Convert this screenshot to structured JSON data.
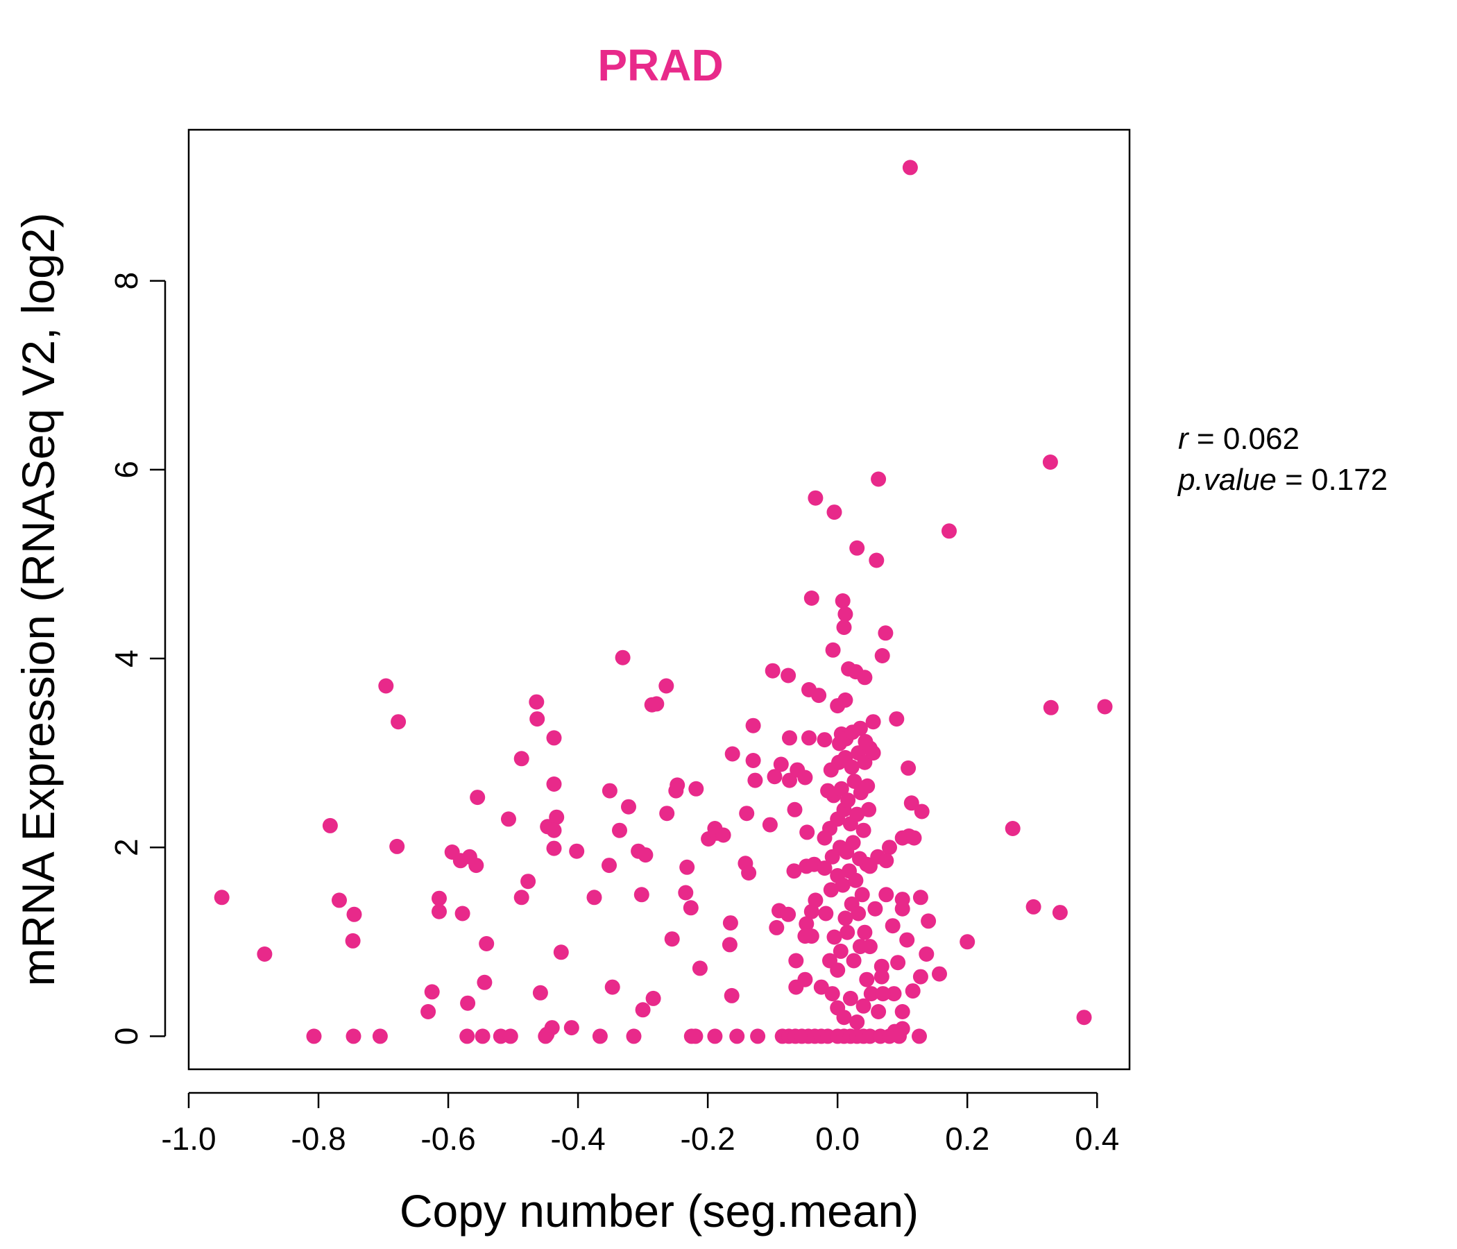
{
  "chart_data": {
    "type": "scatter",
    "title": "PRAD",
    "xlabel": "Copy number (seg.mean)",
    "ylabel": "mRNA Expression (RNASeq V2, log2)",
    "xlim": [
      -1.0,
      0.45
    ],
    "ylim": [
      -0.35,
      9.6
    ],
    "x_ticks": [
      "-1.0",
      "-0.8",
      "-0.6",
      "-0.4",
      "-0.2",
      "0.0",
      "0.2",
      "0.4"
    ],
    "y_ticks": [
      "0",
      "2",
      "4",
      "6",
      "8"
    ],
    "grid": false,
    "point_color": "#E8298A",
    "title_color": "#E8298A",
    "stats": {
      "r_label": "r",
      "r_value": "0.062",
      "p_label": "p.value",
      "p_value": "0.172"
    },
    "points": [
      [
        0.112,
        9.2
      ],
      [
        0.328,
        6.08
      ],
      [
        -0.034,
        5.7
      ],
      [
        -0.005,
        5.55
      ],
      [
        0.063,
        5.9
      ],
      [
        0.172,
        5.35
      ],
      [
        0.03,
        5.17
      ],
      [
        0.06,
        5.04
      ],
      [
        -0.04,
        4.64
      ],
      [
        0.008,
        4.61
      ],
      [
        0.012,
        4.47
      ],
      [
        0.01,
        4.33
      ],
      [
        0.074,
        4.27
      ],
      [
        -0.007,
        4.09
      ],
      [
        0.069,
        4.03
      ],
      [
        0.017,
        3.89
      ],
      [
        0.028,
        3.86
      ],
      [
        0.042,
        3.8
      ],
      [
        -0.1,
        3.87
      ],
      [
        -0.076,
        3.82
      ],
      [
        -0.044,
        3.67
      ],
      [
        -0.029,
        3.61
      ],
      [
        0.0,
        3.5
      ],
      [
        0.012,
        3.56
      ],
      [
        0.091,
        3.36
      ],
      [
        -0.331,
        4.01
      ],
      [
        -0.264,
        3.71
      ],
      [
        -0.286,
        3.51
      ],
      [
        -0.279,
        3.52
      ],
      [
        -0.696,
        3.71
      ],
      [
        -0.677,
        3.33
      ],
      [
        -0.464,
        3.54
      ],
      [
        -0.463,
        3.36
      ],
      [
        -0.437,
        3.16
      ],
      [
        -0.13,
        3.29
      ],
      [
        -0.074,
        3.16
      ],
      [
        -0.044,
        3.16
      ],
      [
        -0.02,
        3.14
      ],
      [
        0.329,
        3.48
      ],
      [
        0.412,
        3.49
      ],
      [
        0.055,
        3.33
      ],
      [
        0.035,
        3.26
      ],
      [
        0.006,
        3.2
      ],
      [
        -0.162,
        2.99
      ],
      [
        -0.13,
        2.92
      ],
      [
        -0.087,
        2.88
      ],
      [
        -0.097,
        2.75
      ],
      [
        -0.074,
        2.71
      ],
      [
        -0.127,
        2.71
      ],
      [
        -0.05,
        2.74
      ],
      [
        -0.062,
        2.82
      ],
      [
        -0.487,
        2.94
      ],
      [
        -0.437,
        2.67
      ],
      [
        -0.351,
        2.6
      ],
      [
        -0.247,
        2.66
      ],
      [
        -0.249,
        2.6
      ],
      [
        -0.218,
        2.62
      ],
      [
        -0.555,
        2.53
      ],
      [
        0.109,
        2.84
      ],
      [
        0.114,
        2.47
      ],
      [
        0.13,
        2.38
      ],
      [
        0.27,
        2.2
      ],
      [
        0.11,
        2.12
      ],
      [
        0.1,
        2.1
      ],
      [
        0.118,
        2.1
      ],
      [
        0.08,
        2.0
      ],
      [
        0.062,
        1.9
      ],
      [
        0.075,
        1.86
      ],
      [
        -0.322,
        2.43
      ],
      [
        -0.263,
        2.36
      ],
      [
        -0.066,
        2.4
      ],
      [
        -0.14,
        2.36
      ],
      [
        -0.104,
        2.24
      ],
      [
        -0.507,
        2.3
      ],
      [
        -0.447,
        2.22
      ],
      [
        -0.433,
        2.32
      ],
      [
        -0.437,
        2.18
      ],
      [
        -0.336,
        2.18
      ],
      [
        -0.189,
        2.2
      ],
      [
        -0.199,
        2.09
      ],
      [
        -0.186,
        2.15
      ],
      [
        -0.176,
        2.13
      ],
      [
        -0.047,
        2.16
      ],
      [
        -0.782,
        2.23
      ],
      [
        -0.679,
        2.01
      ],
      [
        -0.437,
        1.99
      ],
      [
        -0.402,
        1.96
      ],
      [
        -0.307,
        1.96
      ],
      [
        -0.296,
        1.92
      ],
      [
        -0.352,
        1.81
      ],
      [
        -0.232,
        1.79
      ],
      [
        -0.142,
        1.83
      ],
      [
        -0.137,
        1.73
      ],
      [
        -0.594,
        1.95
      ],
      [
        -0.567,
        1.9
      ],
      [
        -0.557,
        1.81
      ],
      [
        -0.581,
        1.86
      ],
      [
        -0.477,
        1.64
      ],
      [
        -0.067,
        1.75
      ],
      [
        -0.048,
        1.8
      ],
      [
        -0.036,
        1.82
      ],
      [
        -0.02,
        1.78
      ],
      [
        0.045,
        1.82
      ],
      [
        -0.949,
        1.47
      ],
      [
        -0.768,
        1.44
      ],
      [
        -0.745,
        1.29
      ],
      [
        -0.614,
        1.46
      ],
      [
        -0.614,
        1.32
      ],
      [
        -0.578,
        1.3
      ],
      [
        -0.487,
        1.47
      ],
      [
        -0.375,
        1.47
      ],
      [
        -0.302,
        1.5
      ],
      [
        -0.234,
        1.52
      ],
      [
        -0.226,
        1.36
      ],
      [
        -0.09,
        1.33
      ],
      [
        -0.076,
        1.29
      ],
      [
        -0.034,
        1.44
      ],
      [
        -0.04,
        1.32
      ],
      [
        -0.048,
        1.19
      ],
      [
        -0.094,
        1.15
      ],
      [
        0.075,
        1.5
      ],
      [
        0.1,
        1.45
      ],
      [
        0.128,
        1.47
      ],
      [
        0.1,
        1.35
      ],
      [
        0.14,
        1.22
      ],
      [
        0.085,
        1.17
      ],
      [
        0.107,
        1.02
      ],
      [
        0.302,
        1.37
      ],
      [
        0.343,
        1.31
      ],
      [
        0.2,
        1.0
      ],
      [
        0.137,
        0.87
      ],
      [
        0.157,
        0.66
      ],
      [
        0.128,
        0.63
      ],
      [
        -0.747,
        1.01
      ],
      [
        -0.883,
        0.87
      ],
      [
        -0.541,
        0.98
      ],
      [
        -0.255,
        1.03
      ],
      [
        -0.426,
        0.89
      ],
      [
        -0.165,
        1.2
      ],
      [
        -0.166,
        0.97
      ],
      [
        -0.212,
        0.72
      ],
      [
        -0.05,
        1.06
      ],
      [
        -0.04,
        1.06
      ],
      [
        -0.064,
        0.8
      ],
      [
        0.093,
        0.78
      ],
      [
        0.068,
        0.74
      ],
      [
        0.068,
        0.63
      ],
      [
        0.087,
        0.45
      ],
      [
        0.116,
        0.48
      ],
      [
        -0.544,
        0.57
      ],
      [
        -0.458,
        0.46
      ],
      [
        -0.347,
        0.52
      ],
      [
        -0.625,
        0.47
      ],
      [
        -0.57,
        0.35
      ],
      [
        -0.631,
        0.26
      ],
      [
        -0.284,
        0.4
      ],
      [
        -0.3,
        0.28
      ],
      [
        -0.163,
        0.43
      ],
      [
        -0.064,
        0.52
      ],
      [
        -0.05,
        0.6
      ],
      [
        -0.025,
        0.52
      ],
      [
        0.052,
        0.45
      ],
      [
        0.07,
        0.45
      ],
      [
        0.063,
        0.26
      ],
      [
        0.1,
        0.26
      ],
      [
        0.38,
        0.2
      ],
      [
        0.1,
        0.08
      ],
      [
        0.088,
        0.05
      ],
      [
        -0.44,
        0.09
      ],
      [
        -0.41,
        0.09
      ],
      [
        -0.448,
        0.02
      ],
      [
        -0.807,
        0.0
      ],
      [
        -0.746,
        0.0
      ],
      [
        -0.705,
        0.0
      ],
      [
        -0.571,
        0.0
      ],
      [
        -0.547,
        0.0
      ],
      [
        -0.519,
        0.0
      ],
      [
        -0.504,
        0.0
      ],
      [
        -0.45,
        0.0
      ],
      [
        -0.366,
        0.0
      ],
      [
        -0.314,
        0.0
      ],
      [
        -0.225,
        0.0
      ],
      [
        -0.219,
        0.0
      ],
      [
        -0.189,
        0.0
      ],
      [
        -0.155,
        0.0
      ],
      [
        -0.123,
        0.0
      ],
      [
        -0.085,
        0.0
      ],
      [
        -0.075,
        0.0
      ],
      [
        -0.065,
        0.0
      ],
      [
        -0.055,
        0.0
      ],
      [
        -0.045,
        0.0
      ],
      [
        -0.035,
        0.0
      ],
      [
        -0.025,
        0.0
      ],
      [
        -0.015,
        0.0
      ],
      [
        0.0,
        0.0
      ],
      [
        0.01,
        0.0
      ],
      [
        0.02,
        0.0
      ],
      [
        0.03,
        0.0
      ],
      [
        0.04,
        0.0
      ],
      [
        0.05,
        0.0
      ],
      [
        0.066,
        0.0
      ],
      [
        0.08,
        0.0
      ],
      [
        0.095,
        0.0
      ],
      [
        0.126,
        0.0
      ],
      [
        0.0,
        0.3
      ],
      [
        0.01,
        0.2
      ],
      [
        0.02,
        0.4
      ],
      [
        0.03,
        0.15
      ],
      [
        0.04,
        0.32
      ],
      [
        0.0,
        0.7
      ],
      [
        0.005,
        0.9
      ],
      [
        0.015,
        1.1
      ],
      [
        0.025,
        0.8
      ],
      [
        0.035,
        0.95
      ],
      [
        -0.005,
        1.05
      ],
      [
        0.012,
        1.25
      ],
      [
        0.022,
        1.4
      ],
      [
        0.032,
        1.3
      ],
      [
        0.042,
        1.1
      ],
      [
        -0.01,
        1.55
      ],
      [
        0.0,
        1.7
      ],
      [
        0.008,
        1.6
      ],
      [
        0.018,
        1.75
      ],
      [
        0.028,
        1.65
      ],
      [
        0.038,
        1.5
      ],
      [
        -0.008,
        1.9
      ],
      [
        0.004,
        2.0
      ],
      [
        0.014,
        1.95
      ],
      [
        0.024,
        2.05
      ],
      [
        0.034,
        1.88
      ],
      [
        -0.012,
        2.2
      ],
      [
        0.0,
        2.3
      ],
      [
        0.01,
        2.4
      ],
      [
        0.02,
        2.25
      ],
      [
        0.03,
        2.35
      ],
      [
        0.04,
        2.18
      ],
      [
        -0.006,
        2.55
      ],
      [
        0.006,
        2.62
      ],
      [
        0.016,
        2.5
      ],
      [
        0.026,
        2.7
      ],
      [
        0.036,
        2.58
      ],
      [
        0.046,
        2.65
      ],
      [
        -0.01,
        2.82
      ],
      [
        0.002,
        2.9
      ],
      [
        0.012,
        2.95
      ],
      [
        0.022,
        2.85
      ],
      [
        0.032,
        3.0
      ],
      [
        0.042,
        2.9
      ],
      [
        0.05,
        3.05
      ],
      [
        0.003,
        3.1
      ],
      [
        0.013,
        3.15
      ],
      [
        0.023,
        3.22
      ],
      [
        0.043,
        3.12
      ],
      [
        -0.015,
        2.6
      ],
      [
        -0.02,
        2.1
      ],
      [
        -0.018,
        1.3
      ],
      [
        -0.012,
        0.8
      ],
      [
        -0.008,
        0.45
      ],
      [
        0.045,
        0.6
      ],
      [
        0.05,
        1.8
      ],
      [
        0.048,
        2.4
      ],
      [
        0.055,
        3.0
      ],
      [
        0.058,
        1.35
      ],
      [
        0.05,
        0.95
      ]
    ]
  }
}
